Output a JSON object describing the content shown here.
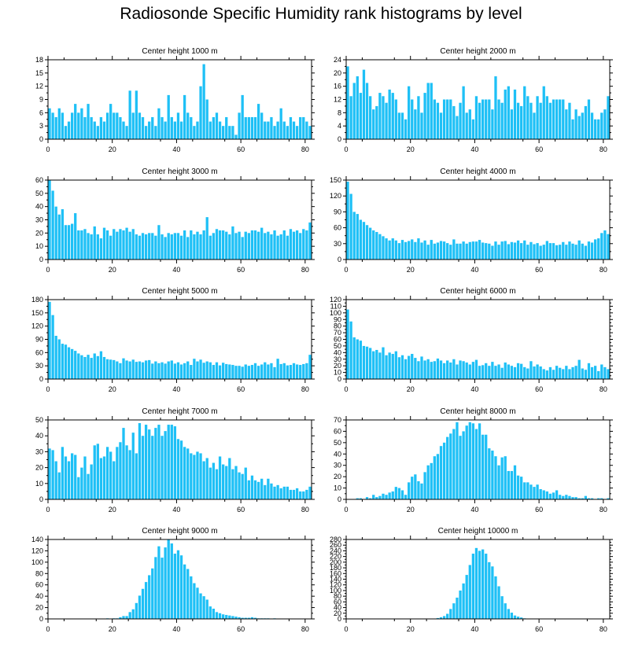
{
  "title": "Radiosonde Specific Humidity rank histograms by level",
  "bar_color": "#1ec0f6",
  "chart_data": [
    {
      "type": "bar",
      "title": "Center height 1000 m",
      "x": "rank 0-81",
      "ylim": [
        0,
        18
      ],
      "yticks": [
        0,
        3,
        6,
        9,
        12,
        15,
        18
      ],
      "xticks": [
        0,
        20,
        40,
        60,
        80
      ],
      "values": [
        7,
        6,
        5,
        7,
        6,
        3,
        4,
        6,
        8,
        6,
        7,
        5,
        8,
        5,
        4,
        3,
        5,
        4,
        6,
        8,
        6,
        6,
        5,
        4,
        3,
        11,
        6,
        11,
        6,
        5,
        3,
        4,
        5,
        3,
        7,
        5,
        4,
        10,
        5,
        4,
        6,
        4,
        10,
        6,
        5,
        3,
        4,
        12,
        17,
        9,
        4,
        5,
        6,
        4,
        3,
        5,
        3,
        3,
        1,
        6,
        10,
        5,
        5,
        5,
        5,
        8,
        6,
        4,
        4,
        5,
        3,
        4,
        7,
        4,
        3,
        5,
        4,
        3,
        5,
        5,
        4,
        3
      ]
    },
    {
      "type": "bar",
      "title": "Center height 2000 m",
      "x": "rank 0-81",
      "ylim": [
        0,
        24
      ],
      "yticks": [
        0,
        4,
        8,
        12,
        16,
        20,
        24
      ],
      "xticks": [
        0,
        20,
        40,
        60,
        80
      ],
      "values": [
        22,
        13,
        17,
        19,
        14,
        21,
        17,
        13,
        9,
        10,
        14,
        13,
        11,
        15,
        14,
        12,
        8,
        8,
        6,
        16,
        12,
        9,
        13,
        8,
        14,
        17,
        17,
        12,
        11,
        8,
        12,
        12,
        12,
        10,
        7,
        11,
        16,
        8,
        9,
        6,
        13,
        11,
        12,
        12,
        12,
        9,
        19,
        12,
        11,
        15,
        16,
        9,
        15,
        11,
        10,
        16,
        13,
        11,
        8,
        13,
        11,
        16,
        13,
        11,
        12,
        12,
        12,
        12,
        9,
        11,
        6,
        9,
        7,
        8,
        10,
        12,
        8,
        6,
        6,
        8,
        9,
        13
      ]
    },
    {
      "type": "bar",
      "title": "Center height 3000 m",
      "x": "rank 0-81",
      "ylim": [
        0,
        60
      ],
      "yticks": [
        0,
        10,
        20,
        30,
        40,
        50,
        60
      ],
      "xticks": [
        0,
        20,
        40,
        60,
        80
      ],
      "values": [
        60,
        52,
        40,
        34,
        38,
        26,
        26,
        27,
        35,
        22,
        22,
        23,
        20,
        19,
        25,
        19,
        16,
        24,
        22,
        18,
        23,
        21,
        23,
        22,
        24,
        21,
        23,
        19,
        18,
        20,
        19,
        20,
        20,
        18,
        26,
        19,
        17,
        20,
        19,
        20,
        20,
        18,
        22,
        17,
        22,
        19,
        21,
        19,
        22,
        32,
        18,
        20,
        23,
        22,
        22,
        21,
        19,
        25,
        20,
        21,
        17,
        21,
        20,
        22,
        22,
        21,
        24,
        20,
        21,
        19,
        22,
        18,
        19,
        22,
        18,
        23,
        21,
        22,
        20,
        23,
        22,
        28
      ]
    },
    {
      "type": "bar",
      "title": "Center height 4000 m",
      "x": "rank 0-81",
      "ylim": [
        0,
        150
      ],
      "yticks": [
        0,
        30,
        60,
        90,
        120,
        150
      ],
      "xticks": [
        0,
        20,
        40,
        60,
        80
      ],
      "values": [
        147,
        124,
        90,
        86,
        75,
        71,
        65,
        60,
        55,
        52,
        48,
        44,
        40,
        36,
        40,
        36,
        31,
        37,
        33,
        35,
        38,
        33,
        40,
        32,
        36,
        28,
        37,
        30,
        32,
        35,
        34,
        31,
        28,
        38,
        30,
        30,
        34,
        30,
        33,
        34,
        34,
        37,
        32,
        31,
        30,
        26,
        34,
        28,
        34,
        35,
        29,
        33,
        32,
        36,
        31,
        36,
        28,
        33,
        29,
        31,
        26,
        28,
        35,
        31,
        31,
        27,
        28,
        33,
        28,
        34,
        30,
        28,
        36,
        30,
        26,
        34,
        32,
        38,
        40,
        50,
        55,
        48
      ]
    },
    {
      "type": "bar",
      "title": "Center height 5000 m",
      "x": "rank 0-81",
      "ylim": [
        0,
        180
      ],
      "yticks": [
        0,
        30,
        60,
        90,
        120,
        150,
        180
      ],
      "xticks": [
        0,
        20,
        40,
        60,
        80
      ],
      "values": [
        175,
        145,
        98,
        90,
        80,
        78,
        72,
        68,
        64,
        58,
        54,
        50,
        55,
        48,
        58,
        52,
        63,
        50,
        45,
        44,
        43,
        40,
        36,
        47,
        42,
        40,
        44,
        39,
        40,
        38,
        42,
        43,
        35,
        40,
        36,
        38,
        35,
        40,
        42,
        35,
        38,
        33,
        36,
        40,
        32,
        46,
        40,
        44,
        37,
        40,
        38,
        32,
        38,
        31,
        37,
        34,
        33,
        32,
        30,
        30,
        28,
        33,
        30,
        32,
        36,
        30,
        33,
        38,
        33,
        36,
        27,
        46,
        34,
        36,
        31,
        32,
        36,
        33,
        32,
        34,
        36,
        55
      ]
    },
    {
      "type": "bar",
      "title": "Center height 6000 m",
      "x": "rank 0-81",
      "ylim": [
        0,
        120
      ],
      "yticks": [
        0,
        10,
        20,
        30,
        40,
        50,
        60,
        70,
        80,
        90,
        100,
        110,
        120
      ],
      "xticks": [
        0,
        20,
        40,
        60,
        80
      ],
      "values": [
        105,
        87,
        63,
        60,
        58,
        50,
        49,
        47,
        42,
        44,
        40,
        48,
        36,
        40,
        38,
        42,
        33,
        36,
        30,
        35,
        38,
        32,
        27,
        34,
        28,
        30,
        26,
        27,
        31,
        28,
        24,
        28,
        25,
        30,
        22,
        28,
        27,
        25,
        22,
        26,
        29,
        20,
        21,
        24,
        20,
        26,
        20,
        22,
        17,
        25,
        22,
        20,
        18,
        24,
        23,
        18,
        16,
        27,
        19,
        22,
        19,
        15,
        13,
        18,
        14,
        20,
        17,
        15,
        20,
        15,
        18,
        20,
        29,
        16,
        14,
        24,
        18,
        20,
        12,
        22,
        18,
        15
      ]
    },
    {
      "type": "bar",
      "title": "Center height 7000 m",
      "x": "rank 0-81",
      "ylim": [
        0,
        50
      ],
      "yticks": [
        0,
        10,
        20,
        30,
        40,
        50
      ],
      "xticks": [
        0,
        20,
        40,
        60,
        80
      ],
      "values": [
        32,
        31,
        24,
        17,
        33,
        27,
        24,
        29,
        28,
        14,
        20,
        27,
        16,
        22,
        34,
        35,
        26,
        27,
        33,
        30,
        24,
        33,
        36,
        45,
        34,
        31,
        42,
        29,
        48,
        40,
        47,
        44,
        40,
        45,
        47,
        40,
        43,
        47,
        47,
        46,
        38,
        37,
        33,
        32,
        29,
        28,
        30,
        29,
        24,
        26,
        20,
        23,
        19,
        27,
        22,
        21,
        26,
        19,
        21,
        17,
        16,
        20,
        12,
        15,
        12,
        11,
        13,
        9,
        13,
        10,
        8,
        9,
        7,
        8,
        8,
        6,
        6,
        7,
        5,
        5,
        6,
        8
      ]
    },
    {
      "type": "bar",
      "title": "Center height 8000 m",
      "x": "rank 0-81",
      "ylim": [
        0,
        70
      ],
      "yticks": [
        0,
        10,
        20,
        30,
        40,
        50,
        60,
        70
      ],
      "xticks": [
        0,
        20,
        40,
        60,
        80
      ],
      "values": [
        0,
        0,
        0,
        1,
        1,
        0,
        2,
        1,
        4,
        2,
        3,
        5,
        4,
        6,
        7,
        11,
        10,
        8,
        4,
        15,
        20,
        22,
        16,
        14,
        24,
        30,
        32,
        38,
        40,
        47,
        50,
        55,
        58,
        62,
        68,
        56,
        60,
        65,
        68,
        67,
        62,
        67,
        57,
        57,
        45,
        43,
        38,
        30,
        37,
        38,
        25,
        25,
        30,
        21,
        20,
        15,
        15,
        13,
        11,
        13,
        9,
        8,
        7,
        5,
        6,
        8,
        4,
        3,
        4,
        3,
        2,
        2,
        1,
        1,
        3,
        1,
        1,
        0,
        1,
        1,
        0,
        1
      ]
    },
    {
      "type": "bar",
      "title": "Center height 9000 m",
      "x": "rank 0-81",
      "ylim": [
        0,
        140
      ],
      "yticks": [
        0,
        20,
        40,
        60,
        80,
        100,
        120,
        140
      ],
      "xticks": [
        0,
        20,
        40,
        60,
        80
      ],
      "values": [
        0,
        0,
        0,
        0,
        0,
        0,
        0,
        0,
        0,
        0,
        0,
        0,
        0,
        0,
        0,
        0,
        0,
        0,
        1,
        0,
        1,
        1,
        3,
        5,
        5,
        12,
        17,
        28,
        41,
        53,
        65,
        77,
        89,
        109,
        128,
        108,
        126,
        140,
        133,
        115,
        121,
        112,
        96,
        88,
        75,
        63,
        55,
        45,
        40,
        34,
        22,
        18,
        12,
        10,
        8,
        7,
        6,
        5,
        4,
        3,
        2,
        2,
        2,
        3,
        2,
        1,
        1,
        1,
        1,
        0,
        1,
        0,
        0,
        0,
        0,
        0,
        0,
        0,
        0,
        0,
        0,
        0
      ]
    },
    {
      "type": "bar",
      "title": "Center height 10000 m",
      "x": "rank 0-81",
      "ylim": [
        0,
        280
      ],
      "yticks": [
        0,
        20,
        40,
        60,
        80,
        100,
        120,
        140,
        160,
        180,
        200,
        220,
        240,
        260,
        280
      ],
      "xticks": [
        0,
        20,
        40,
        60,
        80
      ],
      "values": [
        0,
        0,
        0,
        0,
        0,
        0,
        0,
        0,
        0,
        0,
        0,
        0,
        0,
        0,
        0,
        0,
        0,
        0,
        0,
        0,
        0,
        0,
        0,
        0,
        0,
        0,
        0,
        1,
        3,
        6,
        10,
        18,
        35,
        55,
        75,
        100,
        125,
        155,
        190,
        230,
        250,
        240,
        245,
        230,
        200,
        185,
        150,
        115,
        80,
        55,
        35,
        22,
        12,
        8,
        5,
        2,
        1,
        0,
        0,
        0,
        0,
        0,
        0,
        0,
        0,
        0,
        0,
        0,
        0,
        0,
        0,
        0,
        0,
        0,
        0,
        0,
        0,
        0,
        0,
        0,
        0,
        0
      ]
    }
  ]
}
